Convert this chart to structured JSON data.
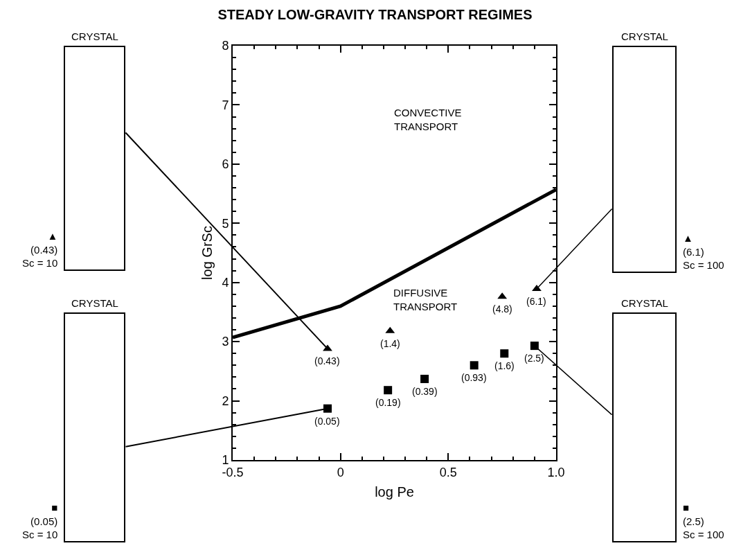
{
  "chart_data": {
    "type": "scatter",
    "title": "STEADY LOW-GRAVITY TRANSPORT REGIMES",
    "xlabel": "log Pe",
    "ylabel": "log GrSc",
    "xlim": [
      -0.5,
      1.0
    ],
    "xticks": [
      -0.5,
      0,
      0.5,
      {
        "value": 1.0,
        "label": "1.0"
      }
    ],
    "ylim": [
      1,
      8
    ],
    "yticks": [
      1,
      2,
      3,
      4,
      5,
      6,
      7,
      8
    ],
    "grid": false,
    "legend": false,
    "series": [
      {
        "type": "line",
        "color": "#000000",
        "marker": "none",
        "line_style": "solid",
        "x": [
          -0.5,
          0,
          1.0
        ],
        "values": [
          3.07,
          3.6,
          5.57
        ]
      },
      {
        "color": "#000000",
        "marker": "triangle",
        "x": [
          -0.06,
          0.23,
          0.75,
          0.91
        ],
        "values": [
          2.88,
          3.18,
          3.76,
          3.89
        ]
      },
      {
        "color": "#000000",
        "marker": "square",
        "x": [
          -0.06,
          0.22,
          0.39,
          0.62,
          0.76,
          0.9
        ],
        "values": [
          1.87,
          2.18,
          2.37,
          2.6,
          2.8,
          2.93
        ]
      }
    ],
    "annotations": [
      "CONVECTIVE\nTRANSPORT",
      "DIFFUSIVE\nTRANSPORT",
      "CRYSTAL",
      "▲\n(0.43)\nSc = 10",
      "CRYSTAL",
      "■\n(0.05)\nSc = 10",
      "CRYSTAL",
      "▲\n(6.1)\nSc = 100",
      "CRYSTAL",
      "■\n(2.5)\nSc = 100",
      {
        "text": "(0.43)",
        "x": -0.06,
        "y": 2.88
      },
      {
        "text": "(1.4)",
        "x": 0.23,
        "y": 3.18
      },
      {
        "text": "(4.8)",
        "x": 0.75,
        "y": 3.76
      },
      {
        "text": "(6.1)",
        "x": 0.91,
        "y": 3.89
      },
      {
        "text": "(0.05)",
        "x": -0.06,
        "y": 1.87
      },
      {
        "text": "(0.19)",
        "x": 0.22,
        "y": 2.18
      },
      {
        "text": "(0.39)",
        "x": 0.39,
        "y": 2.37
      },
      {
        "text": "(0.93)",
        "x": 0.62,
        "y": 2.6
      },
      {
        "text": "(1.6)",
        "x": 0.76,
        "y": 2.8
      },
      {
        "text": "(2.5)",
        "x": 0.9,
        "y": 2.93
      }
    ]
  }
}
